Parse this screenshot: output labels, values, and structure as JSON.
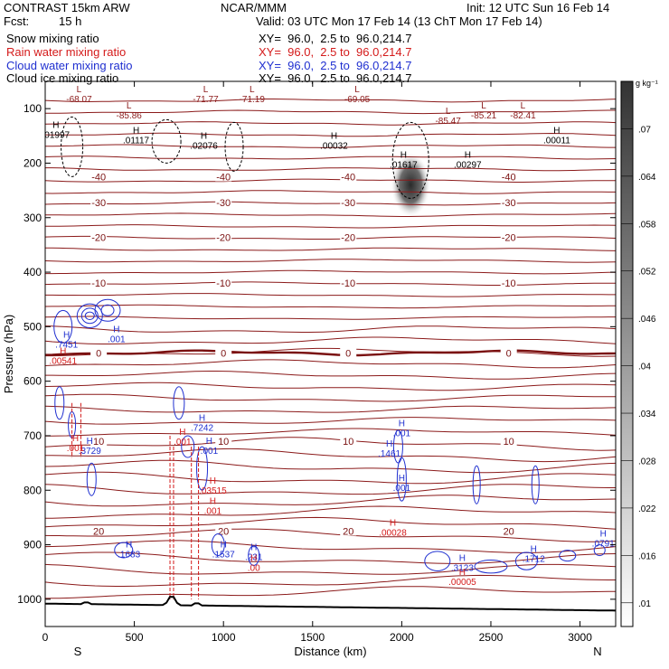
{
  "header": {
    "left1": "CONTRAST 15km ARW",
    "mid1": "NCAR/MMM",
    "right1": "Init: 12 UTC Sun 16 Feb 14",
    "fcst_label": "Fcst:",
    "fcst_value": "15 h",
    "valid": "Valid: 03 UTC Mon 17 Feb 14 (13 ChT Mon 17 Feb 14)",
    "fields": [
      {
        "name": "Snow mixing ratio",
        "xy": "XY=  96.0,  2.5 to  96.0,214.7",
        "color": "#000000"
      },
      {
        "name": "Rain water mixing ratio",
        "xy": "XY=  96.0,  2.5 to  96.0,214.7",
        "color": "#d41a1a"
      },
      {
        "name": "Cloud water mixing ratio",
        "xy": "XY=  96.0,  2.5 to  96.0,214.7",
        "color": "#1f2fd0"
      },
      {
        "name": "Cloud ice mixing ratio",
        "xy": "XY=  96.0,  2.5 to  96.0,214.7",
        "color": "#000000"
      }
    ]
  },
  "chart_data": {
    "type": "heatmap",
    "xlabel": "Distance (km)",
    "ylabel": "Pressure (hPa)",
    "xlim": [
      0,
      3200
    ],
    "ylim": [
      1050,
      50
    ],
    "x_ticks": [
      0,
      500,
      1000,
      1500,
      2000,
      2500,
      3000
    ],
    "y_ticks": [
      100,
      200,
      300,
      400,
      500,
      600,
      700,
      800,
      900,
      1000
    ],
    "end_left": "S",
    "end_right": "N",
    "colorbar": {
      "unit": "g kg⁻¹",
      "ticks": [
        ".01",
        ".016",
        ".022",
        ".028",
        ".034",
        ".04",
        ".046",
        ".052",
        ".058",
        ".064",
        ".07"
      ],
      "tick_values": [
        0.01,
        0.016,
        0.022,
        0.028,
        0.034,
        0.04,
        0.046,
        0.052,
        0.058,
        0.064,
        0.07
      ],
      "range": [
        0.007,
        0.076
      ]
    },
    "ice_maximum": {
      "x": 2050,
      "p": 240,
      "value": 0.076
    },
    "temperature_contours": [
      {
        "label": "-40",
        "pressure": 225
      },
      {
        "label": "-30",
        "pressure": 272
      },
      {
        "label": "-20",
        "pressure": 336
      },
      {
        "label": "-10",
        "pressure": 420
      },
      {
        "label": "0",
        "pressure": 548
      },
      {
        "label": "10",
        "pressure": 710
      },
      {
        "label": "20",
        "pressure": 875
      }
    ],
    "highs_lows": [
      {
        "t": "L",
        "x": 190,
        "p": 85,
        "text": "-68.07",
        "c": "#8b1a1a"
      },
      {
        "t": "L",
        "x": 900,
        "p": 85,
        "text": "-71.77",
        "c": "#8b1a1a"
      },
      {
        "t": "L",
        "x": 1160,
        "p": 85,
        "text": "-71.19",
        "c": "#8b1a1a"
      },
      {
        "t": "L",
        "x": 1750,
        "p": 85,
        "text": "-69.05",
        "c": "#8b1a1a"
      },
      {
        "t": "L",
        "x": 2680,
        "p": 115,
        "text": "-82.41",
        "c": "#8b1a1a"
      },
      {
        "t": "L",
        "x": 2460,
        "p": 115,
        "text": "-85.21",
        "c": "#8b1a1a"
      },
      {
        "t": "L",
        "x": 2260,
        "p": 125,
        "text": "-85.47",
        "c": "#8b1a1a"
      },
      {
        "t": "L",
        "x": 470,
        "p": 115,
        "text": "-85.86",
        "c": "#8b1a1a"
      },
      {
        "t": "H",
        "x": 60,
        "p": 150,
        "text": ".01997",
        "c": "#000000"
      },
      {
        "t": "H",
        "x": 510,
        "p": 160,
        "text": ".01117",
        "c": "#000000"
      },
      {
        "t": "H",
        "x": 890,
        "p": 170,
        "text": ".02076",
        "c": "#000000"
      },
      {
        "t": "H",
        "x": 1620,
        "p": 170,
        "text": ".00032",
        "c": "#000000"
      },
      {
        "t": "H",
        "x": 2010,
        "p": 205,
        "text": ".01617",
        "c": "#000000"
      },
      {
        "t": "H",
        "x": 2370,
        "p": 205,
        "text": ".00297",
        "c": "#000000"
      },
      {
        "t": "H",
        "x": 2870,
        "p": 160,
        "text": ".00011",
        "c": "#000000"
      },
      {
        "t": "H",
        "x": 120,
        "p": 535,
        "text": ".7451",
        "c": "#1f2fd0"
      },
      {
        "t": "H",
        "x": 400,
        "p": 525,
        "text": ".001",
        "c": "#1f2fd0"
      },
      {
        "t": "H",
        "x": 100,
        "p": 565,
        "text": ".00541",
        "c": "#d41a1a"
      },
      {
        "t": "H",
        "x": 880,
        "p": 688,
        "text": ".7242",
        "c": "#1f2fd0"
      },
      {
        "t": "H",
        "x": 920,
        "p": 730,
        "text": ".001",
        "c": "#1f2fd0"
      },
      {
        "t": "H",
        "x": 2000,
        "p": 698,
        "text": ".001",
        "c": "#1f2fd0"
      },
      {
        "t": "H",
        "x": 1930,
        "p": 735,
        "text": ".1461",
        "c": "#1f2fd0"
      },
      {
        "t": "H",
        "x": 2000,
        "p": 798,
        "text": ".001",
        "c": "#1f2fd0"
      },
      {
        "t": "H",
        "x": 250,
        "p": 730,
        "text": ".3729",
        "c": "#1f2fd0"
      },
      {
        "t": "H",
        "x": 170,
        "p": 725,
        "text": ".001",
        "c": "#d41a1a"
      },
      {
        "t": "H",
        "x": 770,
        "p": 713,
        "text": ".001",
        "c": "#d41a1a"
      },
      {
        "t": "H",
        "x": 940,
        "p": 803,
        "text": ".03515",
        "c": "#d41a1a"
      },
      {
        "t": "H",
        "x": 940,
        "p": 840,
        "text": ".001",
        "c": "#d41a1a"
      },
      {
        "t": "H",
        "x": 1950,
        "p": 880,
        "text": ".00028",
        "c": "#d41a1a"
      },
      {
        "t": "H",
        "x": 470,
        "p": 920,
        "text": ".1683",
        "c": "#1f2fd0"
      },
      {
        "t": "H",
        "x": 1000,
        "p": 920,
        "text": ".1537",
        "c": "#1f2fd0"
      },
      {
        "t": "H",
        "x": 1170,
        "p": 925,
        "text": ".231",
        "c": "#1f2fd0"
      },
      {
        "t": "H",
        "x": 1170,
        "p": 945,
        "text": ".00",
        "c": "#d41a1a"
      },
      {
        "t": "H",
        "x": 2340,
        "p": 945,
        "text": ".3123",
        "c": "#1f2fd0"
      },
      {
        "t": "H",
        "x": 2340,
        "p": 970,
        "text": ".00005",
        "c": "#d41a1a"
      },
      {
        "t": "H",
        "x": 2740,
        "p": 928,
        "text": ".1712",
        "c": "#1f2fd0"
      },
      {
        "t": "H",
        "x": 3130,
        "p": 900,
        "text": ".0791",
        "c": "#1f2fd0"
      }
    ]
  }
}
